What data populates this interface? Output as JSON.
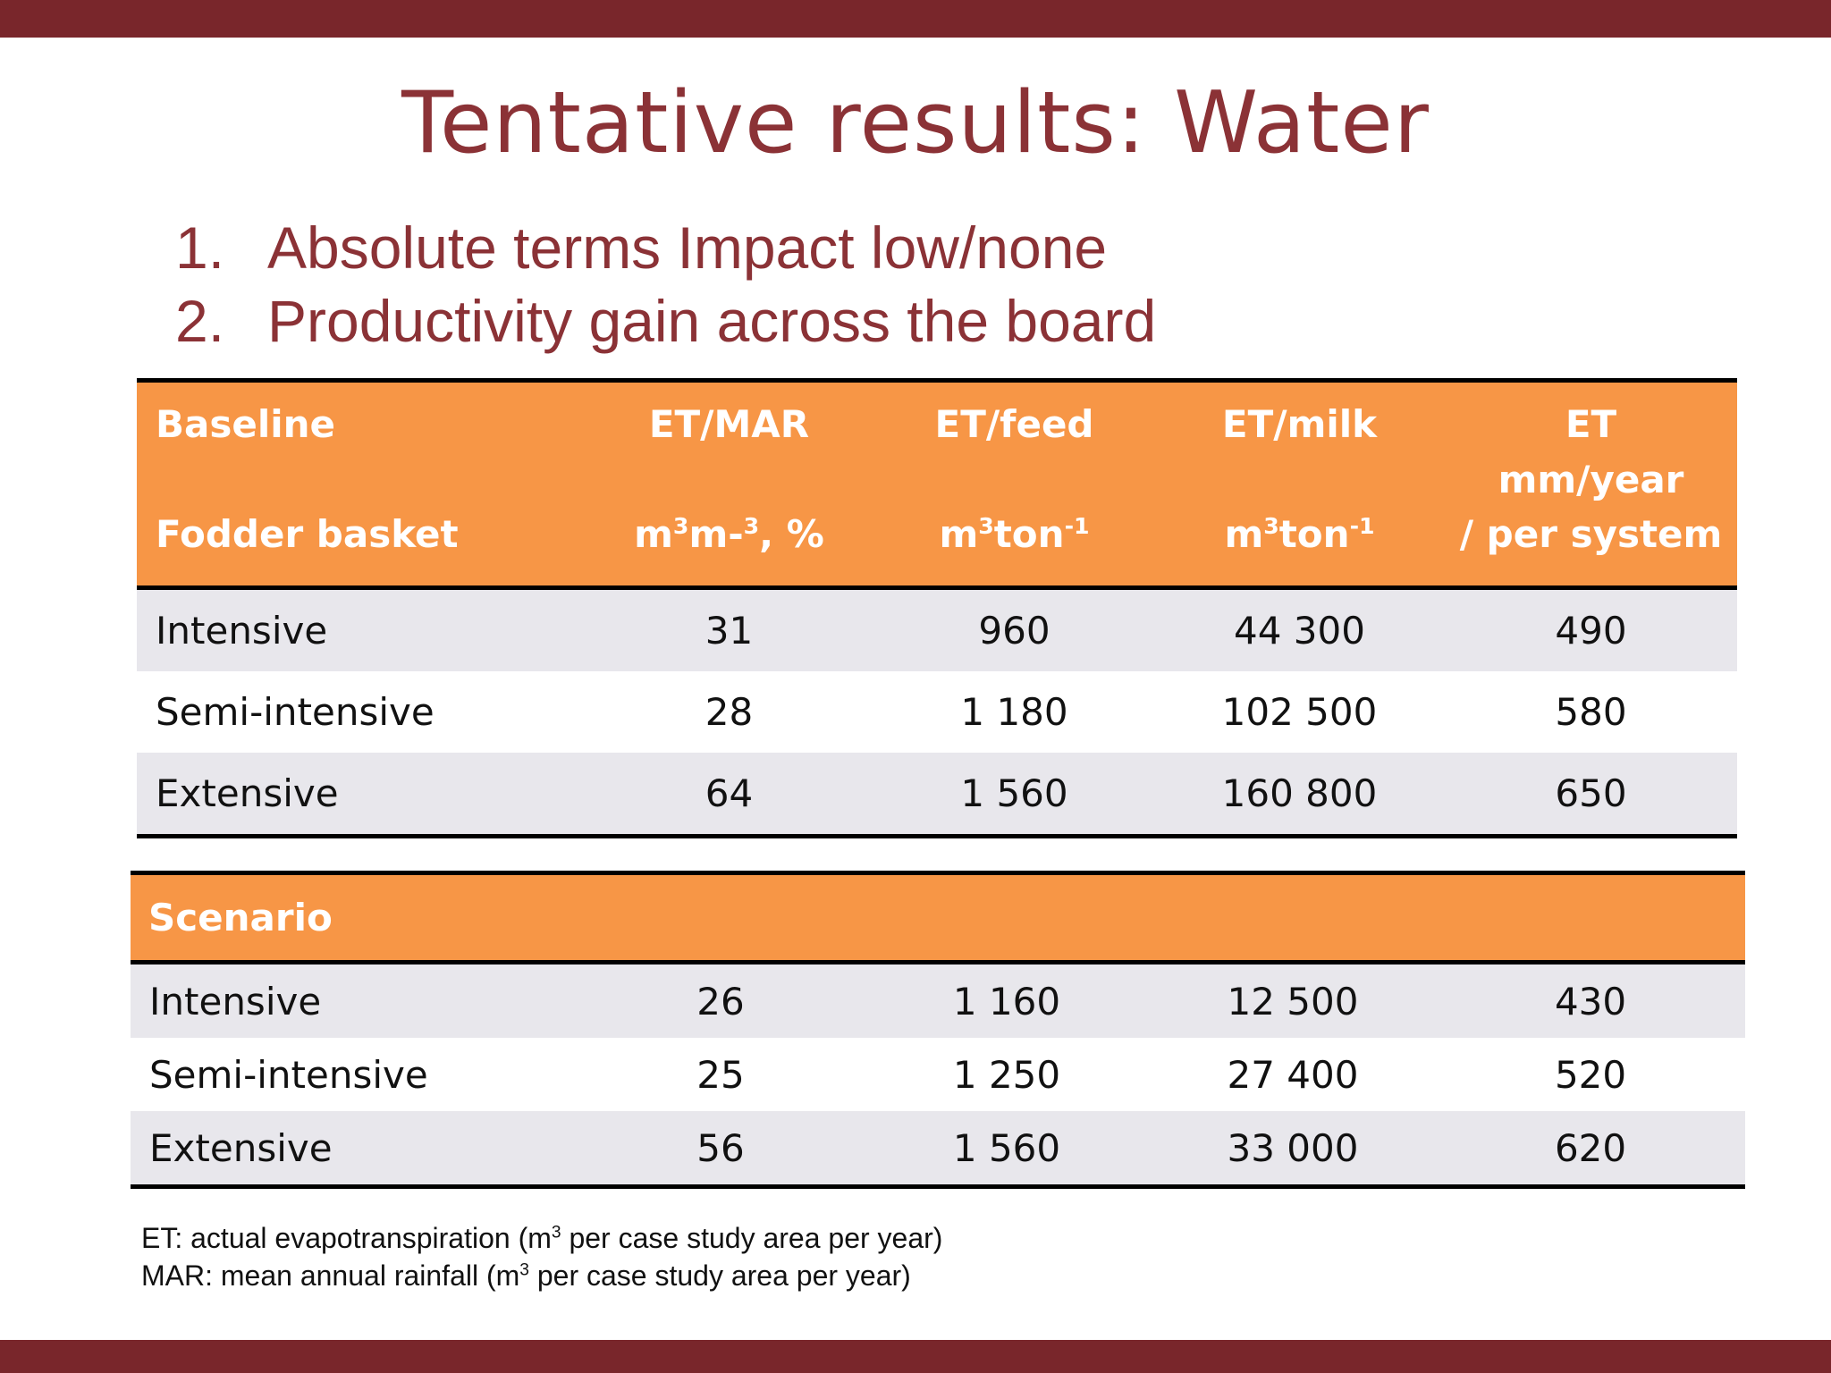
{
  "title": "Tentative results: Water",
  "bullets": [
    {
      "num": "1.",
      "text": "Absolute terms Impact low/none"
    },
    {
      "num": "2.",
      "text": "Productivity gain across the board"
    }
  ],
  "baseline": {
    "header": {
      "col1_line1": "Baseline",
      "col1_line2": "Fodder basket",
      "col2_line1": "ET/MAR",
      "col2_unit": "m",
      "col2_unit_sup1": "3",
      "col2_unit_mid": "m-",
      "col2_unit_sup2": "3",
      "col2_unit_end": ", %",
      "col3_line1": "ET/feed",
      "col3_unit": "m",
      "col3_unit_sup1": "3",
      "col3_unit_mid": "ton",
      "col3_unit_sup2": "-1",
      "col4_line1": "ET/milk",
      "col4_unit": "m",
      "col4_unit_sup1": "3",
      "col4_unit_mid": "ton",
      "col4_unit_sup2": "-1",
      "col5_line1": "ET",
      "col5_line2": "mm/year",
      "col5_line3": "/ per system"
    },
    "rows": [
      {
        "label": "Intensive",
        "et_mar": "31",
        "et_feed": "960",
        "et_milk": "44 300",
        "et": "490"
      },
      {
        "label": "Semi-intensive",
        "et_mar": "28",
        "et_feed": "1 180",
        "et_milk": "102 500",
        "et": "580"
      },
      {
        "label": "Extensive",
        "et_mar": "64",
        "et_feed": "1 560",
        "et_milk": "160 800",
        "et": "650"
      }
    ]
  },
  "scenario": {
    "header": "Scenario",
    "rows": [
      {
        "label": "Intensive",
        "et_mar": "26",
        "et_feed": "1 160",
        "et_milk": "12 500",
        "et": "430"
      },
      {
        "label": "Semi-intensive",
        "et_mar": "25",
        "et_feed": "1 250",
        "et_milk": "27 400",
        "et": "520"
      },
      {
        "label": "Extensive",
        "et_mar": "56",
        "et_feed": "1 560",
        "et_milk": "33 000",
        "et": "620"
      }
    ]
  },
  "notes": {
    "line1_a": "ET: actual evapotranspiration (m",
    "line1_sup": "3",
    "line1_b": " per case study area per year)",
    "line2_a": "MAR: mean annual rainfall (m",
    "line2_sup": "3",
    "line2_b": " per case study area per year)"
  }
}
